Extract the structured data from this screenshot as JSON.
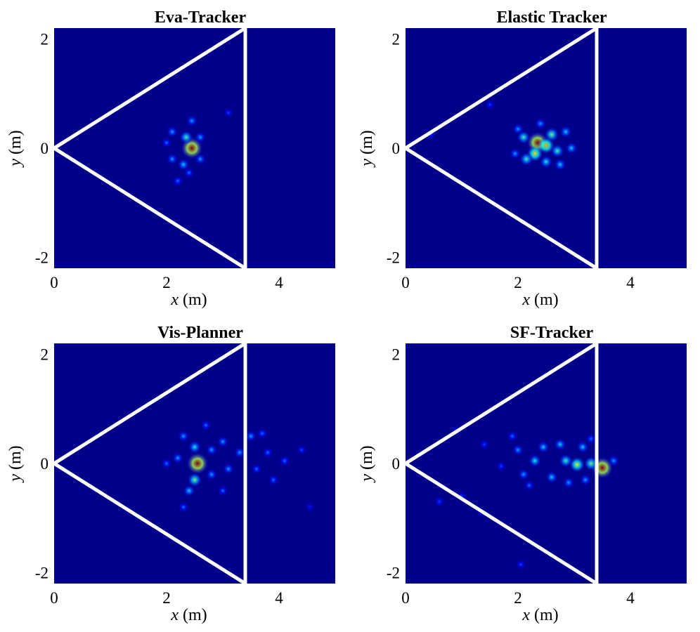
{
  "colors": {
    "background": "#00008b",
    "fov_line": "#ffffff",
    "colormap": "jet"
  },
  "chart_data": [
    {
      "type": "heatmap",
      "title": "Eva-Tracker",
      "xlabel_var": "x",
      "xlabel_unit": " (m)",
      "ylabel_var": "y",
      "ylabel_unit": " (m)",
      "xlim": [
        0,
        5
      ],
      "ylim": [
        -2.2,
        2.2
      ],
      "xticks": [
        0,
        2,
        4
      ],
      "xtick_labels": [
        "0",
        "2",
        "4"
      ],
      "yticks": [
        2,
        0,
        -2
      ],
      "ytick_labels": [
        "2",
        "0",
        "-2"
      ],
      "fov": {
        "apex": [
          0,
          0
        ],
        "corners": [
          [
            3.4,
            2.2
          ],
          [
            3.4,
            -2.2
          ]
        ]
      },
      "hotspots": [
        {
          "x": 2.45,
          "y": 0.0,
          "intensity": 1.0
        },
        {
          "x": 2.35,
          "y": 0.2,
          "intensity": 0.45
        },
        {
          "x": 2.3,
          "y": -0.3,
          "intensity": 0.35
        },
        {
          "x": 2.1,
          "y": 0.3,
          "intensity": 0.3
        },
        {
          "x": 2.2,
          "y": -0.6,
          "intensity": 0.25
        },
        {
          "x": 2.6,
          "y": 0.2,
          "intensity": 0.3
        },
        {
          "x": 2.0,
          "y": 0.1,
          "intensity": 0.25
        },
        {
          "x": 2.1,
          "y": -0.2,
          "intensity": 0.3
        },
        {
          "x": 2.6,
          "y": -0.2,
          "intensity": 0.3
        },
        {
          "x": 2.45,
          "y": 0.5,
          "intensity": 0.3
        },
        {
          "x": 3.1,
          "y": 0.65,
          "intensity": 0.2
        },
        {
          "x": 2.4,
          "y": -0.45,
          "intensity": 0.25
        }
      ]
    },
    {
      "type": "heatmap",
      "title": "Elastic Tracker",
      "xlabel_var": "x",
      "xlabel_unit": " (m)",
      "ylabel_var": "y",
      "ylabel_unit": " (m)",
      "xlim": [
        0,
        5
      ],
      "ylim": [
        -2.2,
        2.2
      ],
      "xticks": [
        0,
        2,
        4
      ],
      "xtick_labels": [
        "0",
        "2",
        "4"
      ],
      "yticks": [
        2,
        0,
        -2
      ],
      "ytick_labels": [
        "2",
        "0",
        "-2"
      ],
      "fov": {
        "apex": [
          0,
          0
        ],
        "corners": [
          [
            3.4,
            2.2
          ],
          [
            3.4,
            -2.2
          ]
        ]
      },
      "hotspots": [
        {
          "x": 2.35,
          "y": 0.1,
          "intensity": 1.0
        },
        {
          "x": 2.5,
          "y": 0.05,
          "intensity": 0.7
        },
        {
          "x": 2.3,
          "y": -0.1,
          "intensity": 0.65
        },
        {
          "x": 2.1,
          "y": 0.2,
          "intensity": 0.45
        },
        {
          "x": 2.6,
          "y": 0.25,
          "intensity": 0.5
        },
        {
          "x": 2.7,
          "y": -0.05,
          "intensity": 0.45
        },
        {
          "x": 2.15,
          "y": -0.2,
          "intensity": 0.45
        },
        {
          "x": 2.5,
          "y": -0.25,
          "intensity": 0.4
        },
        {
          "x": 2.85,
          "y": 0.3,
          "intensity": 0.35
        },
        {
          "x": 2.95,
          "y": 0.0,
          "intensity": 0.35
        },
        {
          "x": 2.0,
          "y": 0.35,
          "intensity": 0.3
        },
        {
          "x": 1.95,
          "y": -0.1,
          "intensity": 0.3
        },
        {
          "x": 2.75,
          "y": -0.3,
          "intensity": 0.35
        },
        {
          "x": 2.4,
          "y": 0.45,
          "intensity": 0.3
        },
        {
          "x": 1.5,
          "y": 0.8,
          "intensity": 0.2
        },
        {
          "x": 0.45,
          "y": 0.25,
          "intensity": 0.2
        }
      ]
    },
    {
      "type": "heatmap",
      "title": "Vis-Planner",
      "xlabel_var": "x",
      "xlabel_unit": " (m)",
      "ylabel_var": "y",
      "ylabel_unit": " (m)",
      "xlim": [
        0,
        5
      ],
      "ylim": [
        -2.2,
        2.2
      ],
      "xticks": [
        0,
        2,
        4
      ],
      "xtick_labels": [
        "0",
        "2",
        "4"
      ],
      "yticks": [
        2,
        0,
        -2
      ],
      "ytick_labels": [
        "2",
        "0",
        "-2"
      ],
      "fov": {
        "apex": [
          0,
          0
        ],
        "corners": [
          [
            3.4,
            2.2
          ],
          [
            3.4,
            -2.2
          ]
        ]
      },
      "hotspots": [
        {
          "x": 2.55,
          "y": 0.0,
          "intensity": 1.0
        },
        {
          "x": 2.5,
          "y": -0.3,
          "intensity": 0.5
        },
        {
          "x": 2.5,
          "y": 0.3,
          "intensity": 0.4
        },
        {
          "x": 2.4,
          "y": -0.5,
          "intensity": 0.35
        },
        {
          "x": 2.3,
          "y": 0.5,
          "intensity": 0.3
        },
        {
          "x": 2.2,
          "y": 0.1,
          "intensity": 0.3
        },
        {
          "x": 2.0,
          "y": 0.0,
          "intensity": 0.25
        },
        {
          "x": 2.8,
          "y": 0.25,
          "intensity": 0.3
        },
        {
          "x": 2.8,
          "y": -0.2,
          "intensity": 0.3
        },
        {
          "x": 3.0,
          "y": 0.4,
          "intensity": 0.3
        },
        {
          "x": 3.1,
          "y": -0.1,
          "intensity": 0.3
        },
        {
          "x": 3.3,
          "y": 0.2,
          "intensity": 0.3
        },
        {
          "x": 3.5,
          "y": 0.5,
          "intensity": 0.3
        },
        {
          "x": 3.6,
          "y": -0.1,
          "intensity": 0.25
        },
        {
          "x": 3.8,
          "y": 0.2,
          "intensity": 0.25
        },
        {
          "x": 3.9,
          "y": -0.3,
          "intensity": 0.25
        },
        {
          "x": 4.1,
          "y": 0.05,
          "intensity": 0.25
        },
        {
          "x": 4.4,
          "y": 0.25,
          "intensity": 0.2
        },
        {
          "x": 3.0,
          "y": -0.5,
          "intensity": 0.25
        },
        {
          "x": 2.3,
          "y": -0.8,
          "intensity": 0.25
        },
        {
          "x": 2.7,
          "y": 0.7,
          "intensity": 0.25
        },
        {
          "x": 3.7,
          "y": 0.55,
          "intensity": 0.25
        },
        {
          "x": 4.55,
          "y": -0.8,
          "intensity": 0.15
        }
      ]
    },
    {
      "type": "heatmap",
      "title": "SF-Tracker",
      "xlabel_var": "x",
      "xlabel_unit": " (m)",
      "ylabel_var": "y",
      "ylabel_unit": " (m)",
      "xlim": [
        0,
        5
      ],
      "ylim": [
        -2.2,
        2.2
      ],
      "xticks": [
        0,
        2,
        4
      ],
      "xtick_labels": [
        "0",
        "2",
        "4"
      ],
      "yticks": [
        2,
        0,
        -2
      ],
      "ytick_labels": [
        "2",
        "0",
        "-2"
      ],
      "fov": {
        "apex": [
          0,
          0
        ],
        "corners": [
          [
            3.4,
            2.2
          ],
          [
            3.4,
            -2.2
          ]
        ]
      },
      "hotspots": [
        {
          "x": 3.5,
          "y": -0.08,
          "intensity": 1.0
        },
        {
          "x": 3.05,
          "y": -0.02,
          "intensity": 0.6
        },
        {
          "x": 3.3,
          "y": 0.0,
          "intensity": 0.5
        },
        {
          "x": 2.85,
          "y": 0.05,
          "intensity": 0.45
        },
        {
          "x": 2.3,
          "y": 0.05,
          "intensity": 0.4
        },
        {
          "x": 2.45,
          "y": 0.3,
          "intensity": 0.35
        },
        {
          "x": 2.6,
          "y": -0.25,
          "intensity": 0.35
        },
        {
          "x": 2.1,
          "y": -0.2,
          "intensity": 0.3
        },
        {
          "x": 2.0,
          "y": 0.25,
          "intensity": 0.3
        },
        {
          "x": 2.75,
          "y": 0.35,
          "intensity": 0.35
        },
        {
          "x": 3.15,
          "y": 0.3,
          "intensity": 0.35
        },
        {
          "x": 3.2,
          "y": -0.3,
          "intensity": 0.3
        },
        {
          "x": 2.9,
          "y": -0.35,
          "intensity": 0.3
        },
        {
          "x": 1.9,
          "y": 0.5,
          "intensity": 0.25
        },
        {
          "x": 2.2,
          "y": -0.4,
          "intensity": 0.25
        },
        {
          "x": 3.3,
          "y": 0.45,
          "intensity": 0.25
        },
        {
          "x": 1.4,
          "y": 0.35,
          "intensity": 0.2
        },
        {
          "x": 1.7,
          "y": -0.05,
          "intensity": 0.2
        },
        {
          "x": 0.9,
          "y": 0.6,
          "intensity": 0.2
        },
        {
          "x": 1.0,
          "y": -0.6,
          "intensity": 0.2
        },
        {
          "x": 0.6,
          "y": -0.7,
          "intensity": 0.2
        },
        {
          "x": 1.35,
          "y": -0.9,
          "intensity": 0.15
        },
        {
          "x": 2.05,
          "y": -1.85,
          "intensity": 0.2
        },
        {
          "x": 3.7,
          "y": 0.05,
          "intensity": 0.3
        }
      ]
    }
  ]
}
